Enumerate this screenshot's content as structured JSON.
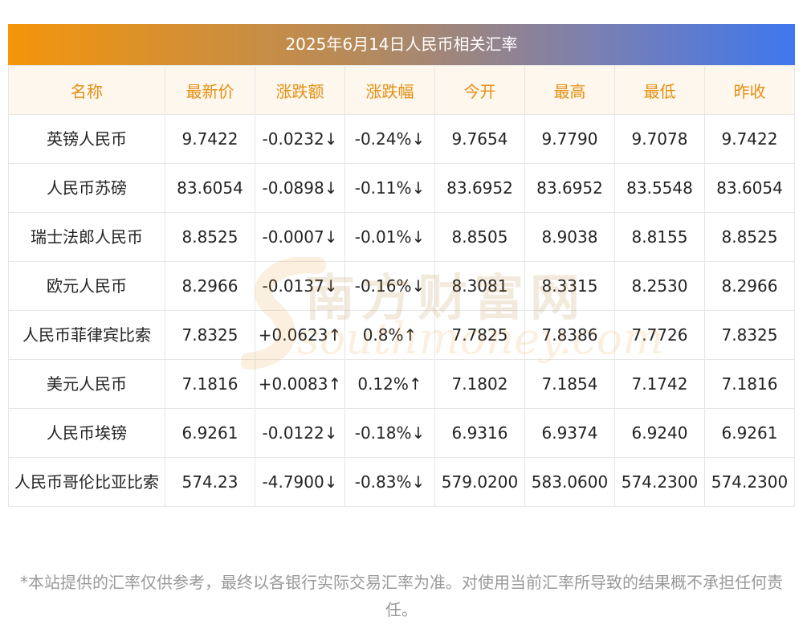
{
  "title": "2025年6月14日人民币相关汇率",
  "headers": [
    "名称",
    "最新价",
    "涨跌额",
    "涨跌幅",
    "今开",
    "最高",
    "最低",
    "昨收"
  ],
  "rows": [
    {
      "name": "英镑人民币",
      "latest": "9.7422",
      "change": "-0.0232↓",
      "pct": "-0.24%↓",
      "open": "9.7654",
      "high": "9.7790",
      "low": "9.7078",
      "prev": "9.7422",
      "dir": "down"
    },
    {
      "name": "人民币苏磅",
      "latest": "83.6054",
      "change": "-0.0898↓",
      "pct": "-0.11%↓",
      "open": "83.6952",
      "high": "83.6952",
      "low": "83.5548",
      "prev": "83.6054",
      "dir": "down"
    },
    {
      "name": "瑞士法郎人民币",
      "latest": "8.8525",
      "change": "-0.0007↓",
      "pct": "-0.01%↓",
      "open": "8.8505",
      "high": "8.9038",
      "low": "8.8155",
      "prev": "8.8525",
      "dir": "down"
    },
    {
      "name": "欧元人民币",
      "latest": "8.2966",
      "change": "-0.0137↓",
      "pct": "-0.16%↓",
      "open": "8.3081",
      "high": "8.3315",
      "low": "8.2530",
      "prev": "8.2966",
      "dir": "down"
    },
    {
      "name": "人民币菲律宾比索",
      "latest": "7.8325",
      "change": "+0.0623↑",
      "pct": "0.8%↑",
      "open": "7.7825",
      "high": "7.8386",
      "low": "7.7726",
      "prev": "7.8325",
      "dir": "up"
    },
    {
      "name": "美元人民币",
      "latest": "7.1816",
      "change": "+0.0083↑",
      "pct": "0.12%↑",
      "open": "7.1802",
      "high": "7.1854",
      "low": "7.1742",
      "prev": "7.1816",
      "dir": "up"
    },
    {
      "name": "人民币埃镑",
      "latest": "6.9261",
      "change": "-0.0122↓",
      "pct": "-0.18%↓",
      "open": "6.9316",
      "high": "6.9374",
      "low": "6.9240",
      "prev": "6.9261",
      "dir": "down"
    },
    {
      "name": "人民币哥伦比亚比索",
      "latest": "574.23",
      "change": "-4.7900↓",
      "pct": "-0.83%↓",
      "open": "579.0200",
      "high": "583.0600",
      "low": "574.2300",
      "prev": "574.2300",
      "dir": "down"
    }
  ],
  "watermark": {
    "cn": "南方财富网",
    "en": "southmoney.com"
  },
  "footnote": "*本站提供的汇率仅供参考，最终以各银行实际交易汇率为准。对使用当前汇率所导致的结果概不承担任何责任。",
  "colors": {
    "up": "#e62424",
    "down": "#2f8a1f",
    "header_text": "#e58f12",
    "header_bg": "#fdf7ee"
  }
}
